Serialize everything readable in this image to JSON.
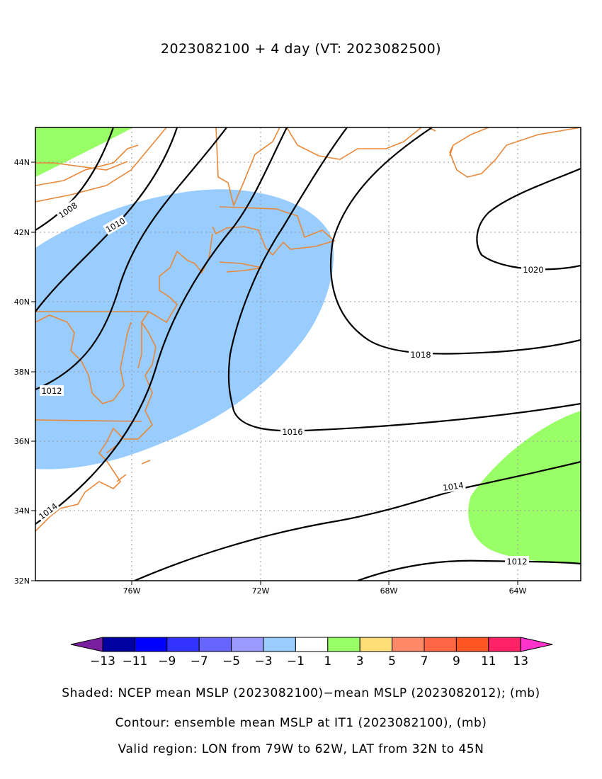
{
  "title": "2023082100 + 4 day (VT: 2023082500)",
  "map": {
    "lat_labels": [
      "44N",
      "42N",
      "40N",
      "38N",
      "36N",
      "34N",
      "32N"
    ],
    "lon_labels": [
      "76W",
      "72W",
      "68W",
      "64W"
    ],
    "contour_labels": [
      "1008",
      "1010",
      "1012",
      "1014",
      "1016",
      "1018",
      "1020",
      "1014",
      "1012"
    ],
    "shading_colors": {
      "negative_1_3": "#99ccff",
      "positive_1_3": "#99ff66"
    },
    "coastline_color": "#e8883a"
  },
  "colorbar": {
    "colors": [
      "#7a1ea0",
      "#0000a0",
      "#0000ff",
      "#3333ff",
      "#6666ff",
      "#9999ff",
      "#99ccff",
      "#ffffff",
      "#99ff66",
      "#ffdd77",
      "#ff8866",
      "#ff6644",
      "#ff5522",
      "#ff2266",
      "#ff33cc"
    ],
    "labels": [
      "−13",
      "−11",
      "−9",
      "−7",
      "−5",
      "−3",
      "−1",
      "1",
      "3",
      "5",
      "7",
      "9",
      "11",
      "13"
    ]
  },
  "captions": {
    "shaded": "Shaded: NCEP mean MSLP (2023082100)−mean MSLP (2023082012); (mb)",
    "contour": "Contour: ensemble mean MSLP at IT1 (2023082100), (mb)",
    "region": "Valid region: LON from 79W to 62W, LAT from 32N to 45N"
  }
}
